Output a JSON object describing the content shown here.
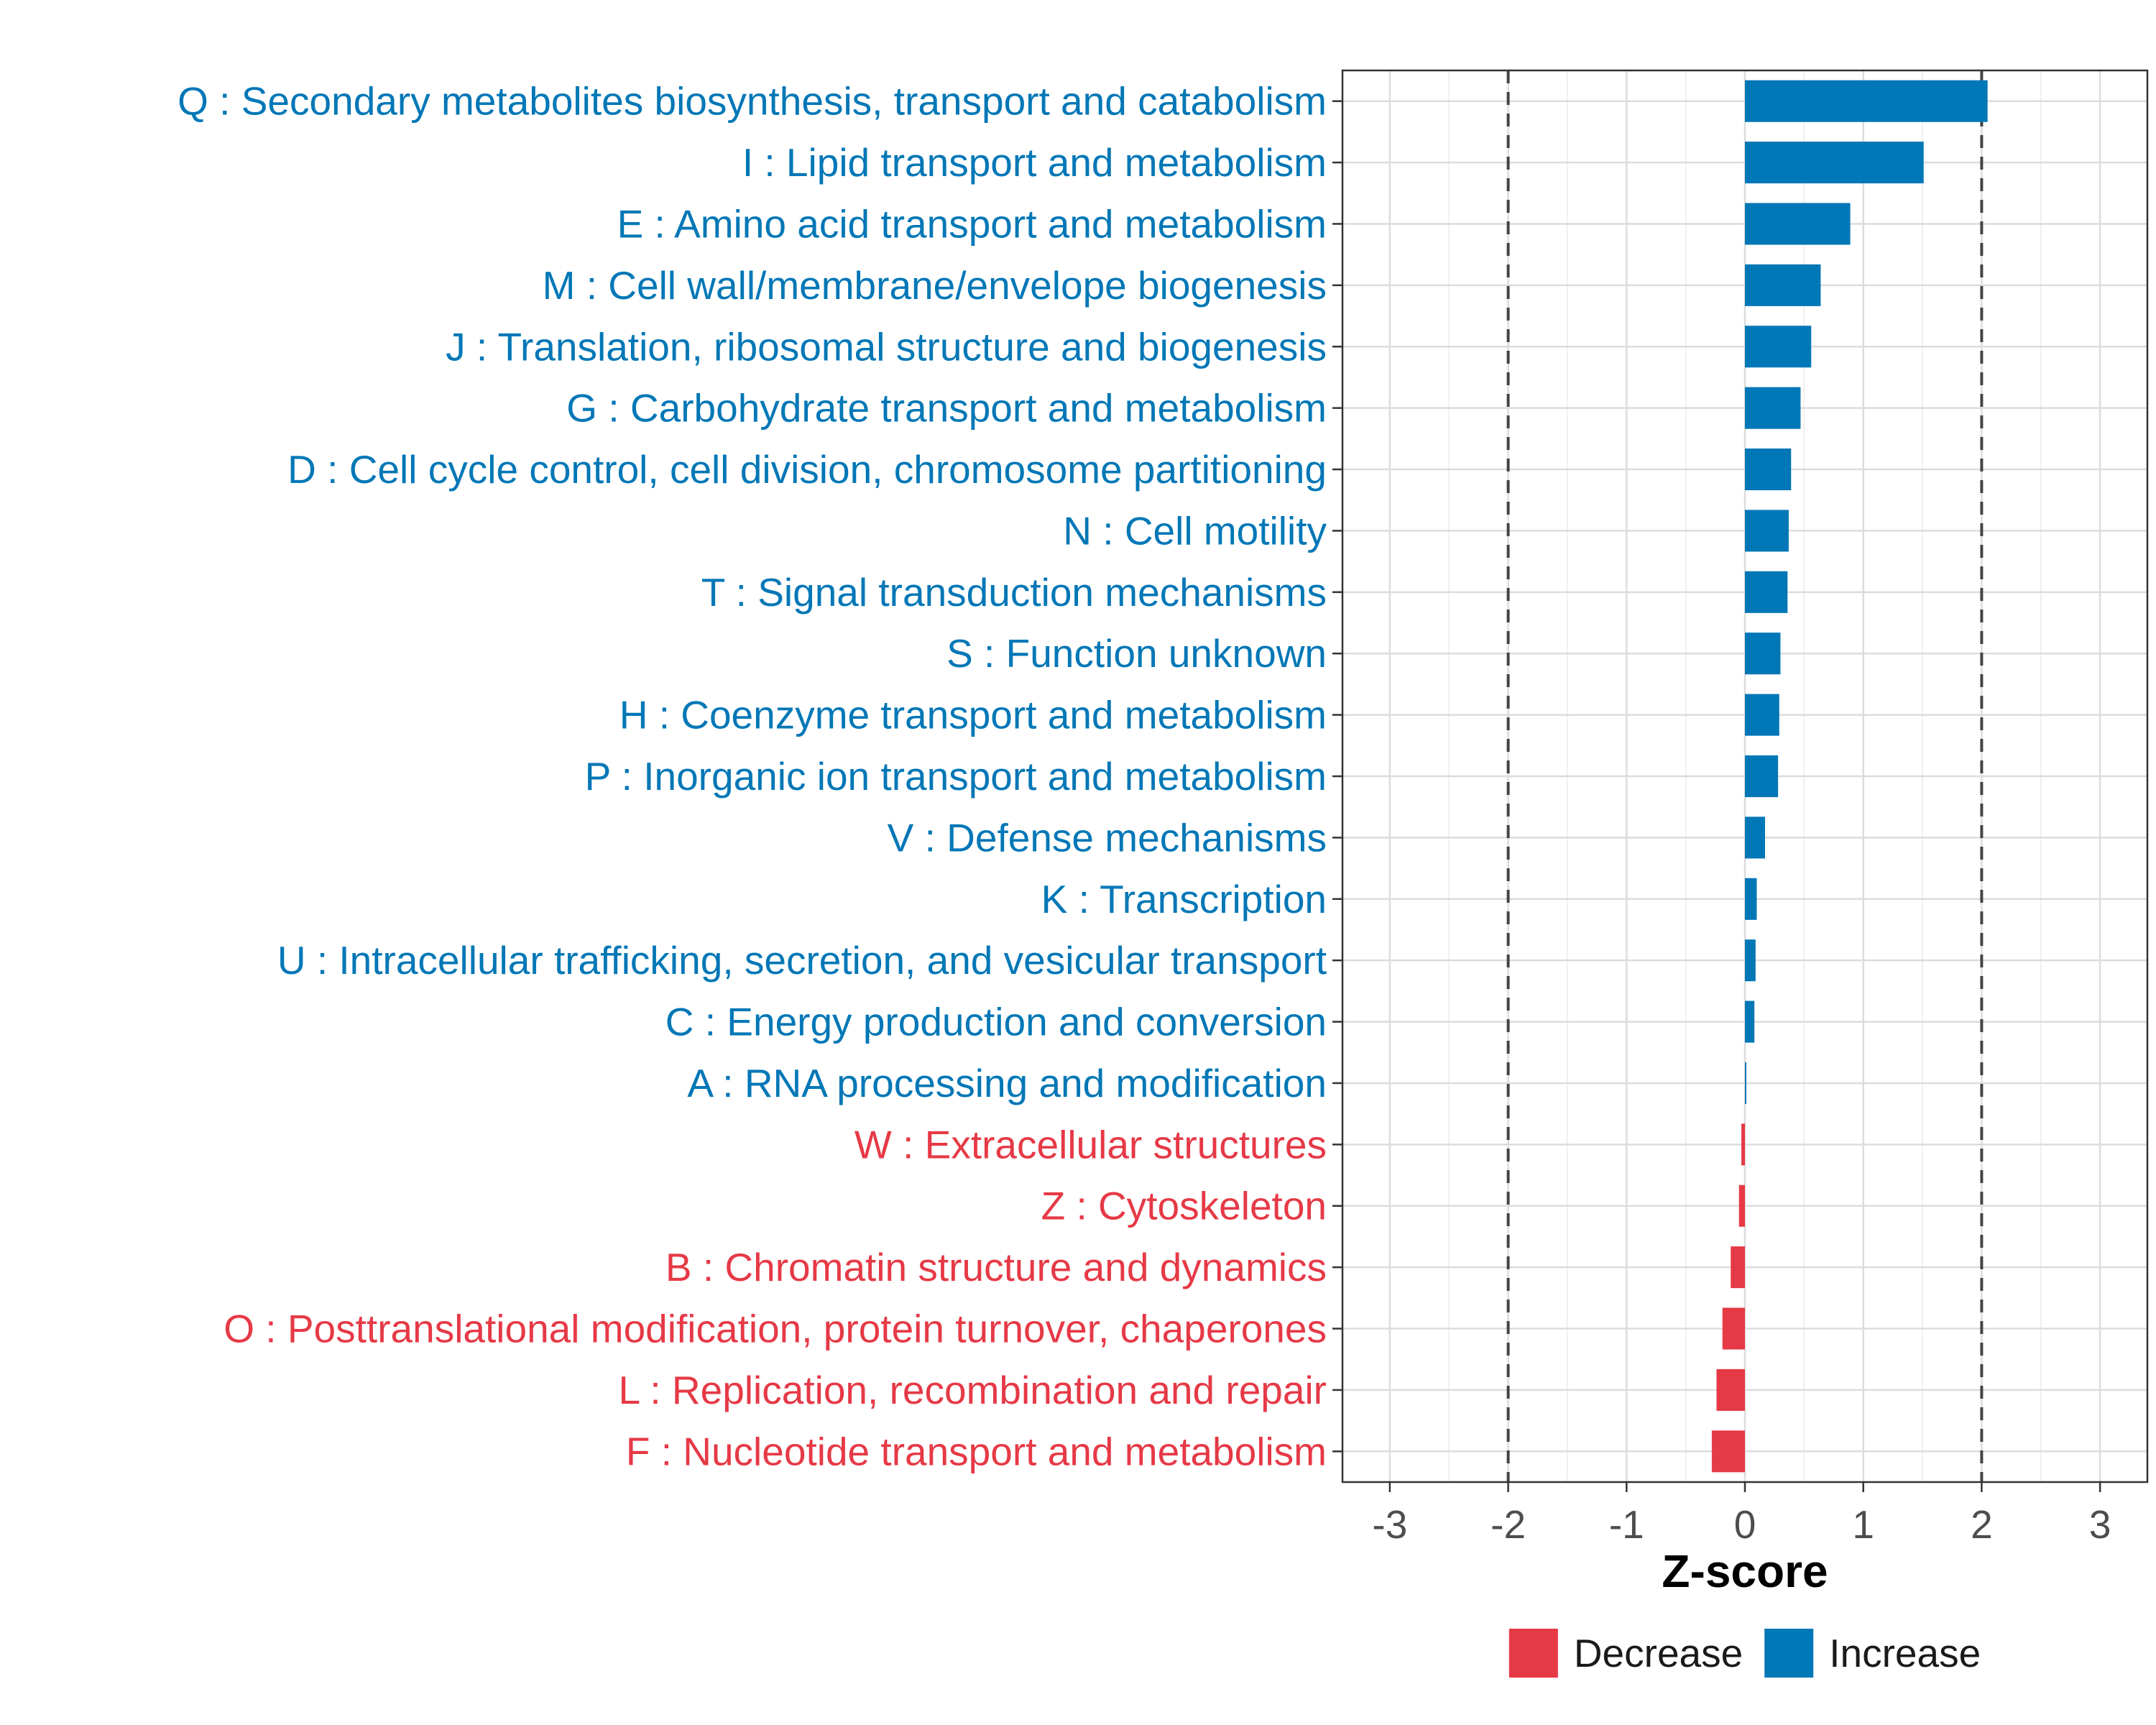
{
  "chart_data": {
    "type": "bar",
    "orientation": "horizontal",
    "xlabel": "Z-score",
    "xlim": [
      -3.4,
      3.4
    ],
    "x_ticks": [
      -3,
      -2,
      -1,
      0,
      1,
      2,
      3
    ],
    "x_tick_labels": [
      "-3",
      "-2",
      "-1",
      "0",
      "1",
      "2",
      "3"
    ],
    "threshold_lines": [
      -2,
      2
    ],
    "grid": true,
    "legend_position": "bottom",
    "colors": {
      "Decrease": "#e63946",
      "Increase": "#0077b6"
    },
    "legend": [
      {
        "name": "Decrease",
        "color": "#e63946"
      },
      {
        "name": "Increase",
        "color": "#0077b6"
      }
    ],
    "categories": [
      "Q : Secondary metabolites biosynthesis, transport and catabolism",
      "I : Lipid transport and metabolism",
      "E : Amino acid transport and metabolism",
      "M : Cell wall/membrane/envelope biogenesis",
      "J : Translation, ribosomal structure and biogenesis",
      "G : Carbohydrate transport and metabolism",
      "D : Cell cycle control, cell division, chromosome partitioning",
      "N : Cell motility",
      "T : Signal transduction mechanisms",
      "S : Function unknown",
      "H : Coenzyme transport and metabolism",
      "P : Inorganic ion transport and metabolism",
      "V : Defense mechanisms",
      "K : Transcription",
      "U : Intracellular trafficking, secretion, and vesicular transport",
      "C : Energy production and conversion",
      "A : RNA processing and modification",
      "W : Extracellular structures",
      "Z : Cytoskeleton",
      "B : Chromatin structure and dynamics",
      "O : Posttranslational modification, protein turnover, chaperones",
      "L : Replication, recombination and repair",
      "F : Nucleotide transport and metabolism"
    ],
    "values": [
      2.05,
      1.51,
      0.89,
      0.64,
      0.56,
      0.47,
      0.39,
      0.37,
      0.36,
      0.3,
      0.29,
      0.28,
      0.17,
      0.1,
      0.09,
      0.08,
      0.01,
      -0.03,
      -0.05,
      -0.12,
      -0.19,
      -0.24,
      -0.28
    ],
    "groups": [
      "Increase",
      "Increase",
      "Increase",
      "Increase",
      "Increase",
      "Increase",
      "Increase",
      "Increase",
      "Increase",
      "Increase",
      "Increase",
      "Increase",
      "Increase",
      "Increase",
      "Increase",
      "Increase",
      "Increase",
      "Decrease",
      "Decrease",
      "Decrease",
      "Decrease",
      "Decrease",
      "Decrease"
    ]
  }
}
